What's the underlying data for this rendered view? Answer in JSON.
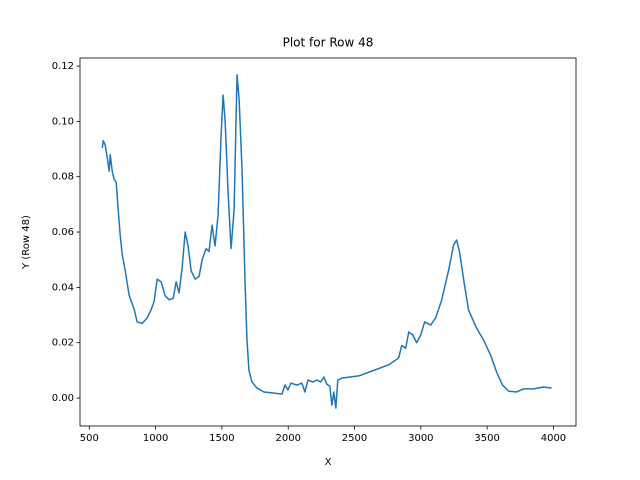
{
  "chart_data": {
    "type": "line",
    "title": "Plot for Row 48",
    "xlabel": "X",
    "ylabel": "Y (Row 48)",
    "x": [
      598,
      605,
      620,
      635,
      650,
      658,
      673,
      688,
      703,
      718,
      733,
      748,
      771,
      801,
      839,
      861,
      899,
      937,
      967,
      989,
      1012,
      1042,
      1072,
      1102,
      1132,
      1155,
      1177,
      1200,
      1223,
      1245,
      1268,
      1298,
      1328,
      1351,
      1381,
      1403,
      1426,
      1448,
      1471,
      1494,
      1509,
      1524,
      1546,
      1569,
      1592,
      1614,
      1630,
      1652,
      1674,
      1689,
      1704,
      1727,
      1765,
      1817,
      1893,
      1953,
      1975,
      1998,
      2020,
      2066,
      2103,
      2126,
      2149,
      2186,
      2216,
      2246,
      2269,
      2291,
      2314,
      2329,
      2344,
      2359,
      2374,
      2404,
      2532,
      2645,
      2758,
      2833,
      2856,
      2886,
      2909,
      2939,
      2969,
      2999,
      3029,
      3074,
      3112,
      3157,
      3210,
      3247,
      3270,
      3292,
      3323,
      3360,
      3420,
      3473,
      3526,
      3571,
      3616,
      3661,
      3722,
      3774,
      3850,
      3925,
      3985
    ],
    "series": [
      {
        "name": "Row 48",
        "color": "#1f77b4",
        "values": [
          0.0904,
          0.093,
          0.0915,
          0.087,
          0.082,
          0.088,
          0.082,
          0.079,
          0.078,
          0.068,
          0.059,
          0.052,
          0.046,
          0.037,
          0.032,
          0.0275,
          0.027,
          0.029,
          0.032,
          0.035,
          0.043,
          0.042,
          0.037,
          0.0355,
          0.036,
          0.042,
          0.038,
          0.047,
          0.06,
          0.055,
          0.046,
          0.043,
          0.044,
          0.05,
          0.054,
          0.053,
          0.0625,
          0.055,
          0.066,
          0.095,
          0.1095,
          0.1005,
          0.075,
          0.054,
          0.068,
          0.1168,
          0.1077,
          0.0824,
          0.0427,
          0.021,
          0.01,
          0.0058,
          0.0036,
          0.0022,
          0.0018,
          0.0014,
          0.0047,
          0.0029,
          0.0054,
          0.0047,
          0.0054,
          0.0022,
          0.0065,
          0.0058,
          0.0065,
          0.0058,
          0.0076,
          0.005,
          0.0043,
          -0.0025,
          0.0022,
          -0.0036,
          0.0065,
          0.0072,
          0.008,
          0.01,
          0.012,
          0.0145,
          0.019,
          0.018,
          0.0239,
          0.0228,
          0.02,
          0.0228,
          0.0275,
          0.0264,
          0.029,
          0.0354,
          0.0463,
          0.0553,
          0.0571,
          0.0528,
          0.0427,
          0.0318,
          0.0253,
          0.021,
          0.0155,
          0.0094,
          0.0047,
          0.0025,
          0.0022,
          0.0033,
          0.0033,
          0.004,
          0.0036
        ]
      }
    ],
    "xlim": [
      430,
      4170
    ],
    "ylim": [
      -0.0101,
      0.1229
    ],
    "xticks": [
      500,
      1000,
      1500,
      2000,
      2500,
      3000,
      3500,
      4000
    ],
    "yticks": [
      {
        "value": 0,
        "label": "0.00"
      },
      {
        "value": 0.02,
        "label": "0.02"
      },
      {
        "value": 0.04,
        "label": "0.04"
      },
      {
        "value": 0.06,
        "label": "0.06"
      },
      {
        "value": 0.08,
        "label": "0.08"
      },
      {
        "value": 0.1,
        "label": "0.10"
      },
      {
        "value": 0.12,
        "label": "0.12"
      }
    ]
  }
}
